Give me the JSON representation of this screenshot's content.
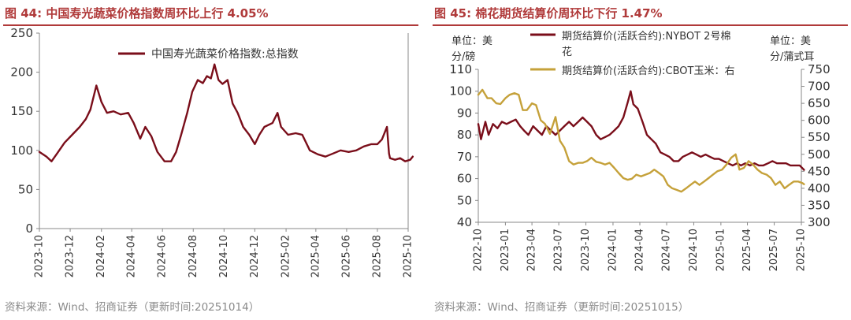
{
  "charts": [
    {
      "id": "fig44",
      "title": "图 44:  中国寿光蔬菜价格指数周环比上行 4.05%",
      "source": "资料来源：Wind、招商证券（更新时间:20251014）"
    },
    {
      "id": "fig45",
      "title": "图 45:  棉花期货结算价周环比下行 1.47%",
      "source": "资料来源：Wind、招商证券（更新时间:20251015）"
    }
  ],
  "colors": {
    "title": "#b03a3a",
    "series_dark": "#7a0e1a",
    "series_gold": "#c5a13a",
    "axis": "#888888",
    "text": "#333333",
    "source": "#8a8a8a"
  },
  "chart_data": [
    {
      "type": "line",
      "title": "中国寿光蔬菜价格指数周环比上行 4.05%",
      "ylim": [
        0,
        250
      ],
      "yticks": [
        0,
        50,
        100,
        150,
        200,
        250
      ],
      "xlim": [
        "2023-10",
        "2025-10"
      ],
      "xticks": [
        "2023-10",
        "2023-12",
        "2024-02",
        "2024-04",
        "2024-06",
        "2024-08",
        "2024-10",
        "2024-12",
        "2025-02",
        "2025-04",
        "2025-06",
        "2025-08",
        "2025-10"
      ],
      "legend": "top-center",
      "series": [
        {
          "name": "中国寿光蔬菜价格指数:总指数",
          "color": "#7a0e1a",
          "axis": "left",
          "points": [
            [
              "2023-10-01",
              98
            ],
            [
              "2023-10-15",
              92
            ],
            [
              "2023-10-25",
              86
            ],
            [
              "2023-11-05",
              96
            ],
            [
              "2023-11-20",
              110
            ],
            [
              "2023-12-05",
              120
            ],
            [
              "2023-12-20",
              130
            ],
            [
              "2024-01-01",
              140
            ],
            [
              "2024-01-10",
              152
            ],
            [
              "2024-01-22",
              183
            ],
            [
              "2024-02-01",
              162
            ],
            [
              "2024-02-12",
              148
            ],
            [
              "2024-02-25",
              150
            ],
            [
              "2024-03-10",
              146
            ],
            [
              "2024-03-25",
              148
            ],
            [
              "2024-04-05",
              135
            ],
            [
              "2024-04-18",
              115
            ],
            [
              "2024-04-28",
              130
            ],
            [
              "2024-05-10",
              118
            ],
            [
              "2024-05-22",
              98
            ],
            [
              "2024-06-05",
              86
            ],
            [
              "2024-06-18",
              86
            ],
            [
              "2024-06-28",
              98
            ],
            [
              "2024-07-08",
              120
            ],
            [
              "2024-07-20",
              148
            ],
            [
              "2024-07-30",
              175
            ],
            [
              "2024-08-10",
              190
            ],
            [
              "2024-08-20",
              186
            ],
            [
              "2024-08-28",
              195
            ],
            [
              "2024-09-05",
              192
            ],
            [
              "2024-09-12",
              210
            ],
            [
              "2024-09-20",
              190
            ],
            [
              "2024-09-28",
              185
            ],
            [
              "2024-10-08",
              190
            ],
            [
              "2024-10-18",
              160
            ],
            [
              "2024-10-28",
              148
            ],
            [
              "2024-11-08",
              130
            ],
            [
              "2024-11-20",
              120
            ],
            [
              "2024-12-01",
              108
            ],
            [
              "2024-12-10",
              120
            ],
            [
              "2024-12-20",
              130
            ],
            [
              "2025-01-05",
              135
            ],
            [
              "2025-01-15",
              148
            ],
            [
              "2025-01-22",
              130
            ],
            [
              "2025-02-05",
              120
            ],
            [
              "2025-02-20",
              122
            ],
            [
              "2025-03-05",
              120
            ],
            [
              "2025-03-20",
              100
            ],
            [
              "2025-04-05",
              95
            ],
            [
              "2025-04-20",
              92
            ],
            [
              "2025-05-05",
              96
            ],
            [
              "2025-05-20",
              100
            ],
            [
              "2025-06-05",
              98
            ],
            [
              "2025-06-20",
              100
            ],
            [
              "2025-07-05",
              105
            ],
            [
              "2025-07-20",
              108
            ],
            [
              "2025-08-01",
              108
            ],
            [
              "2025-08-10",
              114
            ],
            [
              "2025-08-20",
              130
            ],
            [
              "2025-08-24",
              96
            ],
            [
              "2025-08-26",
              90
            ],
            [
              "2025-09-05",
              88
            ],
            [
              "2025-09-15",
              90
            ],
            [
              "2025-09-25",
              86
            ],
            [
              "2025-10-05",
              88
            ],
            [
              "2025-10-10",
              92
            ]
          ]
        }
      ]
    },
    {
      "type": "line",
      "title": "棉花期货结算价周环比下行 1.47%",
      "ylabel_left": "单位：美分/磅",
      "ylabel_right": "单位：美分/蒲式耳",
      "ylim_left": [
        40,
        110
      ],
      "yticks_left": [
        40,
        50,
        60,
        70,
        80,
        90,
        100,
        110
      ],
      "ylim_right": [
        300,
        750
      ],
      "yticks_right": [
        300,
        350,
        400,
        450,
        500,
        550,
        600,
        650,
        700,
        750
      ],
      "xlim": [
        "2022-10",
        "2025-10"
      ],
      "xticks": [
        "2022-10",
        "2023-01",
        "2023-04",
        "2023-07",
        "2023-10",
        "2024-01",
        "2024-04",
        "2024-07",
        "2024-10",
        "2025-01",
        "2025-04",
        "2025-07",
        "2025-10"
      ],
      "legend": "top-center",
      "series": [
        {
          "name": "期货结算价(活跃合约):NYBOT 2号棉花",
          "color": "#7a0e1a",
          "axis": "left",
          "points": [
            [
              "2022-10-01",
              85
            ],
            [
              "2022-10-10",
              78
            ],
            [
              "2022-10-25",
              86
            ],
            [
              "2022-11-05",
              80
            ],
            [
              "2022-11-20",
              85
            ],
            [
              "2022-12-05",
              83
            ],
            [
              "2022-12-20",
              86
            ],
            [
              "2023-01-05",
              85
            ],
            [
              "2023-01-20",
              86
            ],
            [
              "2023-02-05",
              87
            ],
            [
              "2023-02-20",
              84
            ],
            [
              "2023-03-05",
              82
            ],
            [
              "2023-03-20",
              80
            ],
            [
              "2023-04-05",
              84
            ],
            [
              "2023-04-20",
              82
            ],
            [
              "2023-05-05",
              80
            ],
            [
              "2023-05-20",
              84
            ],
            [
              "2023-06-05",
              82
            ],
            [
              "2023-06-20",
              80
            ],
            [
              "2023-07-05",
              82
            ],
            [
              "2023-07-20",
              84
            ],
            [
              "2023-08-05",
              86
            ],
            [
              "2023-08-20",
              84
            ],
            [
              "2023-09-05",
              86
            ],
            [
              "2023-09-20",
              88
            ],
            [
              "2023-10-05",
              86
            ],
            [
              "2023-10-20",
              84
            ],
            [
              "2023-11-05",
              80
            ],
            [
              "2023-11-20",
              78
            ],
            [
              "2023-12-05",
              79
            ],
            [
              "2023-12-20",
              80
            ],
            [
              "2024-01-05",
              82
            ],
            [
              "2024-01-20",
              84
            ],
            [
              "2024-02-05",
              88
            ],
            [
              "2024-02-20",
              95
            ],
            [
              "2024-03-01",
              100
            ],
            [
              "2024-03-10",
              94
            ],
            [
              "2024-03-25",
              92
            ],
            [
              "2024-04-10",
              86
            ],
            [
              "2024-04-25",
              80
            ],
            [
              "2024-05-10",
              78
            ],
            [
              "2024-05-25",
              76
            ],
            [
              "2024-06-10",
              72
            ],
            [
              "2024-06-25",
              71
            ],
            [
              "2024-07-10",
              70
            ],
            [
              "2024-07-25",
              68
            ],
            [
              "2024-08-10",
              68
            ],
            [
              "2024-08-25",
              70
            ],
            [
              "2024-09-10",
              71
            ],
            [
              "2024-09-25",
              72
            ],
            [
              "2024-10-10",
              71
            ],
            [
              "2024-10-25",
              70
            ],
            [
              "2024-11-10",
              71
            ],
            [
              "2024-11-25",
              70
            ],
            [
              "2024-12-10",
              69
            ],
            [
              "2024-12-25",
              69
            ],
            [
              "2025-01-10",
              68
            ],
            [
              "2025-01-25",
              67
            ],
            [
              "2025-02-10",
              66
            ],
            [
              "2025-02-25",
              67
            ],
            [
              "2025-03-10",
              66
            ],
            [
              "2025-03-25",
              67
            ],
            [
              "2025-04-10",
              66
            ],
            [
              "2025-04-25",
              67
            ],
            [
              "2025-05-10",
              66
            ],
            [
              "2025-05-25",
              66
            ],
            [
              "2025-06-10",
              67
            ],
            [
              "2025-06-25",
              68
            ],
            [
              "2025-07-10",
              67
            ],
            [
              "2025-07-25",
              67
            ],
            [
              "2025-08-10",
              67
            ],
            [
              "2025-08-25",
              66
            ],
            [
              "2025-09-10",
              66
            ],
            [
              "2025-09-25",
              66
            ],
            [
              "2025-10-10",
              64
            ]
          ]
        },
        {
          "name": "期货结算价(活跃合约):CBOT玉米：右",
          "color": "#c5a13a",
          "axis": "right",
          "points": [
            [
              "2022-10-01",
              675
            ],
            [
              "2022-10-15",
              690
            ],
            [
              "2022-11-01",
              665
            ],
            [
              "2022-11-15",
              665
            ],
            [
              "2022-12-01",
              650
            ],
            [
              "2022-12-15",
              648
            ],
            [
              "2023-01-01",
              665
            ],
            [
              "2023-01-15",
              675
            ],
            [
              "2023-02-01",
              680
            ],
            [
              "2023-02-15",
              675
            ],
            [
              "2023-03-01",
              630
            ],
            [
              "2023-03-15",
              630
            ],
            [
              "2023-04-01",
              650
            ],
            [
              "2023-04-15",
              645
            ],
            [
              "2023-05-01",
              600
            ],
            [
              "2023-05-15",
              590
            ],
            [
              "2023-06-01",
              560
            ],
            [
              "2023-06-20",
              610
            ],
            [
              "2023-07-05",
              540
            ],
            [
              "2023-07-20",
              520
            ],
            [
              "2023-08-05",
              480
            ],
            [
              "2023-08-20",
              470
            ],
            [
              "2023-09-05",
              475
            ],
            [
              "2023-09-20",
              475
            ],
            [
              "2023-10-05",
              480
            ],
            [
              "2023-10-20",
              490
            ],
            [
              "2023-11-05",
              478
            ],
            [
              "2023-11-20",
              475
            ],
            [
              "2023-12-05",
              470
            ],
            [
              "2023-12-20",
              475
            ],
            [
              "2024-01-05",
              460
            ],
            [
              "2024-01-20",
              445
            ],
            [
              "2024-02-05",
              430
            ],
            [
              "2024-02-20",
              425
            ],
            [
              "2024-03-05",
              428
            ],
            [
              "2024-03-20",
              440
            ],
            [
              "2024-04-05",
              435
            ],
            [
              "2024-04-20",
              440
            ],
            [
              "2024-05-05",
              445
            ],
            [
              "2024-05-20",
              455
            ],
            [
              "2024-06-05",
              445
            ],
            [
              "2024-06-20",
              435
            ],
            [
              "2024-07-05",
              410
            ],
            [
              "2024-07-20",
              400
            ],
            [
              "2024-08-05",
              395
            ],
            [
              "2024-08-20",
              390
            ],
            [
              "2024-09-05",
              400
            ],
            [
              "2024-09-20",
              410
            ],
            [
              "2024-10-05",
              420
            ],
            [
              "2024-10-20",
              410
            ],
            [
              "2024-11-05",
              420
            ],
            [
              "2024-11-20",
              430
            ],
            [
              "2024-12-05",
              440
            ],
            [
              "2024-12-20",
              450
            ],
            [
              "2025-01-05",
              455
            ],
            [
              "2025-01-20",
              470
            ],
            [
              "2025-02-05",
              490
            ],
            [
              "2025-02-20",
              500
            ],
            [
              "2025-03-05",
              455
            ],
            [
              "2025-03-20",
              460
            ],
            [
              "2025-04-05",
              480
            ],
            [
              "2025-04-20",
              470
            ],
            [
              "2025-05-05",
              455
            ],
            [
              "2025-05-20",
              445
            ],
            [
              "2025-06-05",
              440
            ],
            [
              "2025-06-20",
              430
            ],
            [
              "2025-07-05",
              410
            ],
            [
              "2025-07-20",
              420
            ],
            [
              "2025-08-05",
              400
            ],
            [
              "2025-08-20",
              410
            ],
            [
              "2025-09-05",
              420
            ],
            [
              "2025-09-20",
              420
            ],
            [
              "2025-10-05",
              415
            ],
            [
              "2025-10-10",
              412
            ]
          ]
        }
      ]
    }
  ]
}
